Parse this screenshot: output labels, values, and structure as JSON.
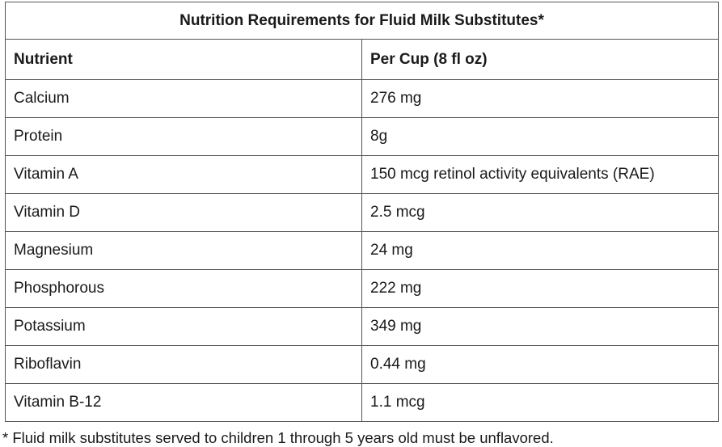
{
  "table": {
    "title": "Nutrition Requirements for Fluid Milk Substitutes*",
    "header": [
      "Nutrient",
      "Per Cup (8 fl oz)"
    ],
    "rows": [
      [
        "Calcium",
        "276 mg"
      ],
      [
        "Protein",
        "8g"
      ],
      [
        "Vitamin A",
        "150 mcg retinol activity equivalents (RAE)"
      ],
      [
        "Vitamin D",
        "2.5 mcg"
      ],
      [
        "Magnesium",
        "24 mg"
      ],
      [
        "Phosphorous",
        "222 mg"
      ],
      [
        "Potassium",
        "349 mg"
      ],
      [
        "Riboflavin",
        "0.44 mg"
      ],
      [
        "Vitamin B-12",
        "1.1 mcg"
      ]
    ]
  },
  "footnote": "* Fluid milk substitutes served to children 1 through 5 years old must be unflavored."
}
